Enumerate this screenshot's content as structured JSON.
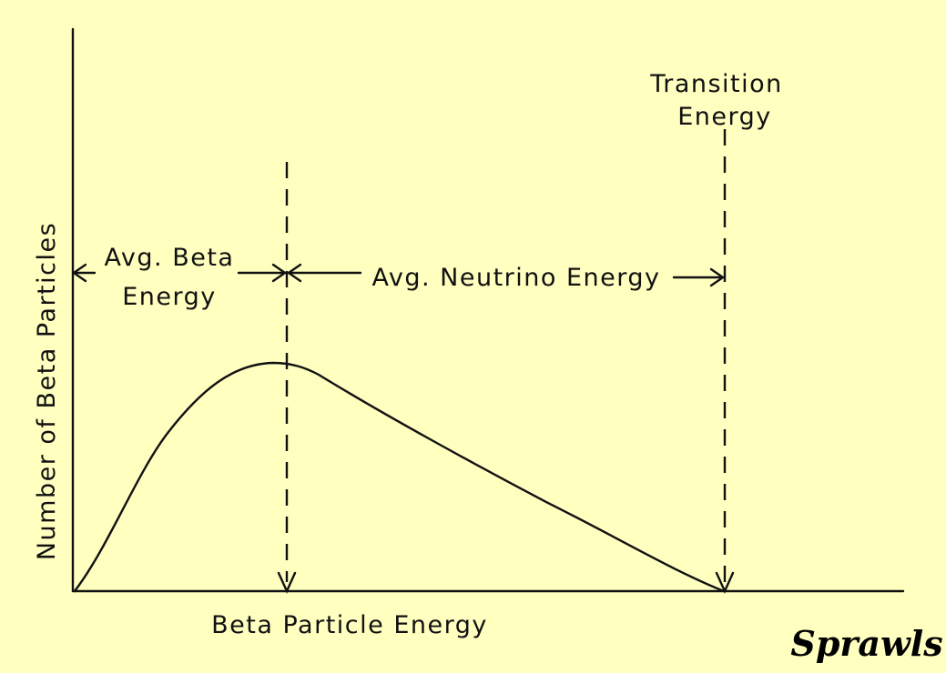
{
  "labels": {
    "y_axis": "Number of Beta Particles",
    "x_axis": "Beta Particle Energy",
    "transition_line1": "Transition",
    "transition_line2": "Energy",
    "avg_beta_line1": "Avg. Beta",
    "avg_beta_line2": "Energy",
    "avg_neutrino": "Avg. Neutrino Energy"
  },
  "signature": "Sprawls",
  "colors": {
    "background": "#ffffc0",
    "ink": "#111111"
  }
}
